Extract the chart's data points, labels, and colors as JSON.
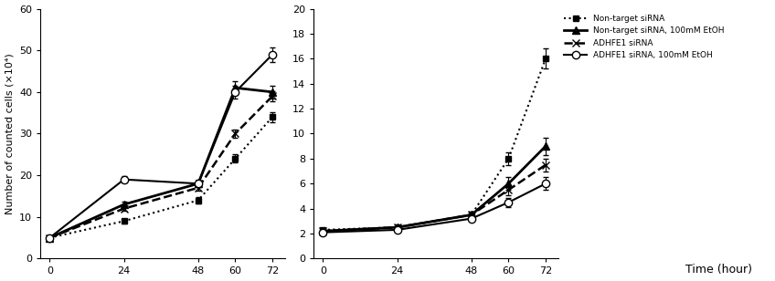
{
  "x": [
    0,
    24,
    48,
    60,
    72
  ],
  "left": {
    "series": [
      {
        "label": "Non-target siRNA",
        "y": [
          5,
          9,
          14,
          24,
          34
        ],
        "yerr": [
          0.3,
          0.5,
          0.8,
          1.0,
          1.2
        ],
        "linestyle": "dotted",
        "marker": "s",
        "markerfacecolor": "black",
        "color": "black",
        "linewidth": 1.5,
        "markersize": 5
      },
      {
        "label": "Non-target siRNA, 100mM EtOH",
        "y": [
          5,
          13,
          18,
          41,
          40
        ],
        "yerr": [
          0.3,
          0.6,
          0.8,
          1.5,
          1.5
        ],
        "linestyle": "solid",
        "marker": "^",
        "markerfacecolor": "black",
        "color": "black",
        "linewidth": 2.0,
        "markersize": 6
      },
      {
        "label": "ADHFE1 siRNA",
        "y": [
          5,
          12,
          17,
          30,
          39
        ],
        "yerr": [
          0.3,
          0.5,
          0.7,
          1.0,
          1.2
        ],
        "linestyle": "dashed",
        "marker": "x",
        "markerfacecolor": "black",
        "color": "black",
        "linewidth": 1.8,
        "markersize": 6
      },
      {
        "label": "ADHFE1 siRNA, 100mM EtOH",
        "y": [
          5,
          19,
          18,
          40,
          49
        ],
        "yerr": [
          0.3,
          0.8,
          0.9,
          1.5,
          1.8
        ],
        "linestyle": "solid",
        "marker": "o",
        "markerfacecolor": "white",
        "color": "black",
        "linewidth": 1.5,
        "markersize": 6
      }
    ],
    "ylabel": "Number of counted cells (×10⁴)",
    "ylim": [
      0,
      60
    ],
    "yticks": [
      0,
      10,
      20,
      30,
      40,
      50,
      60
    ]
  },
  "right": {
    "series": [
      {
        "label": "Non-target siRNA",
        "y": [
          2.3,
          2.5,
          3.5,
          8.0,
          16.0
        ],
        "yerr": [
          0.1,
          0.15,
          0.2,
          0.5,
          0.8
        ],
        "linestyle": "dotted",
        "marker": "s",
        "markerfacecolor": "black",
        "color": "black",
        "linewidth": 1.5,
        "markersize": 5
      },
      {
        "label": "Non-target siRNA, 100mM EtOH",
        "y": [
          2.2,
          2.5,
          3.5,
          6.0,
          9.0
        ],
        "yerr": [
          0.1,
          0.15,
          0.25,
          0.5,
          0.7
        ],
        "linestyle": "solid",
        "marker": "^",
        "markerfacecolor": "black",
        "color": "black",
        "linewidth": 2.0,
        "markersize": 6
      },
      {
        "label": "ADHFE1 siRNA",
        "y": [
          2.2,
          2.5,
          3.5,
          5.5,
          7.5
        ],
        "yerr": [
          0.1,
          0.15,
          0.2,
          0.4,
          0.5
        ],
        "linestyle": "dashed",
        "marker": "x",
        "markerfacecolor": "black",
        "color": "black",
        "linewidth": 1.8,
        "markersize": 6
      },
      {
        "label": "ADHFE1 siRNA, 100mM EtOH",
        "y": [
          2.1,
          2.3,
          3.2,
          4.5,
          6.0
        ],
        "yerr": [
          0.1,
          0.12,
          0.18,
          0.35,
          0.5
        ],
        "linestyle": "solid",
        "marker": "o",
        "markerfacecolor": "white",
        "color": "black",
        "linewidth": 1.5,
        "markersize": 6
      }
    ],
    "xlabel": "Time (hour)",
    "ylim": [
      0,
      20
    ],
    "yticks": [
      0,
      2,
      4,
      6,
      8,
      10,
      12,
      14,
      16,
      18,
      20
    ]
  },
  "xticks": [
    0,
    24,
    48,
    60,
    72
  ],
  "legend_labels": [
    "Non-target siRNA",
    "Non-target siRNA, 100mM EtOH",
    "ADHFE1 siRNA",
    "ADHFE1 siRNA, 100mM EtOH"
  ],
  "legend_linestyles": [
    "dotted",
    "solid",
    "dashed",
    "solid"
  ],
  "legend_markers": [
    "s",
    "^",
    "x",
    "o"
  ],
  "legend_mfcs": [
    "black",
    "black",
    "black",
    "white"
  ],
  "legend_lws": [
    1.5,
    2.0,
    1.8,
    1.5
  ],
  "legend_mss": [
    5,
    6,
    6,
    6
  ]
}
